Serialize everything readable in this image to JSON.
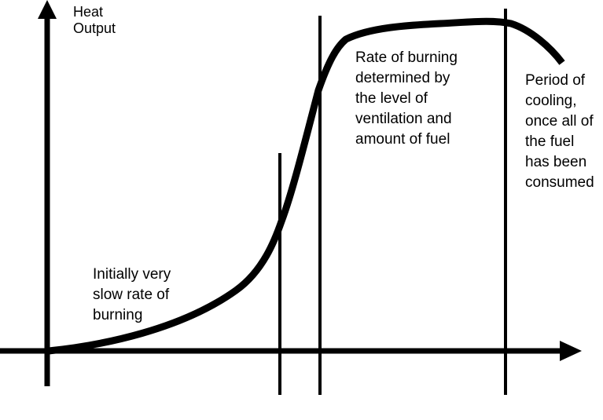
{
  "diagram": {
    "y_axis_label": [
      "Heat",
      "Output"
    ],
    "phases": [
      {
        "id": "growth",
        "lines": [
          "Initially very",
          "slow rate of",
          "burning"
        ]
      },
      {
        "id": "fully-developed",
        "lines": [
          "Rate of burning",
          "determined by",
          "the level of",
          "ventilation and",
          "amount of fuel"
        ]
      },
      {
        "id": "decay",
        "lines": [
          "Period of",
          "cooling,",
          "once all of",
          "the fuel",
          "has been",
          "consumed"
        ]
      }
    ],
    "colors": {
      "line": "#000000",
      "background": "#ffffff"
    }
  }
}
